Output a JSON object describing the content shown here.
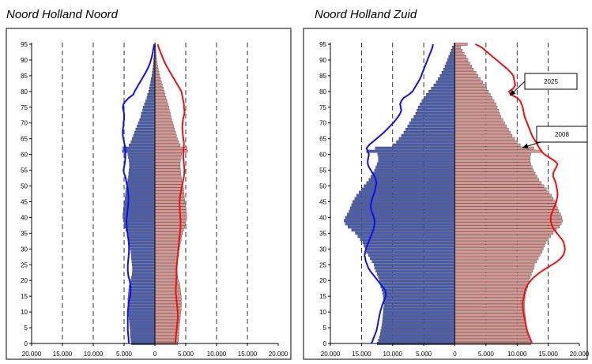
{
  "chart_data": [
    {
      "type": "bar",
      "title": "Noord Holland Noord",
      "orientation": "horizontal",
      "ages": [
        0,
        1,
        2,
        3,
        4,
        5,
        6,
        7,
        8,
        9,
        10,
        11,
        12,
        13,
        14,
        15,
        16,
        17,
        18,
        19,
        20,
        21,
        22,
        23,
        24,
        25,
        26,
        27,
        28,
        29,
        30,
        31,
        32,
        33,
        34,
        35,
        36,
        37,
        38,
        39,
        40,
        41,
        42,
        43,
        44,
        45,
        46,
        47,
        48,
        49,
        50,
        51,
        52,
        53,
        54,
        55,
        56,
        57,
        58,
        59,
        60,
        61,
        62,
        63,
        64,
        65,
        66,
        67,
        68,
        69,
        70,
        71,
        72,
        73,
        74,
        75,
        76,
        77,
        78,
        79,
        80,
        81,
        82,
        83,
        84,
        85,
        86,
        87,
        88,
        89,
        90,
        91,
        92,
        93,
        94,
        95
      ],
      "y_ticks": [
        0,
        5,
        10,
        15,
        20,
        25,
        30,
        35,
        40,
        45,
        50,
        55,
        60,
        65,
        70,
        75,
        80,
        85,
        90,
        95
      ],
      "x_ticks": [
        -20000,
        -15000,
        -10000,
        -5000,
        0,
        5000,
        10000,
        15000,
        20000
      ],
      "x_tick_labels": [
        "20.000",
        "15.000",
        "10.000",
        "5.000",
        "0",
        "5.000",
        "10.000",
        "15.000",
        "20.000"
      ],
      "xlim": [
        -20000,
        20000
      ],
      "ylim": [
        0,
        95
      ],
      "series": [
        {
          "values": [
            3800,
            3900,
            3950,
            4000,
            4000,
            4050,
            4100,
            4150,
            4200,
            4250,
            4300,
            4350,
            4400,
            4400,
            4400,
            4350,
            4300,
            4250,
            4200,
            4100,
            3900,
            3800,
            3700,
            3650,
            3650,
            3700,
            3750,
            3800,
            3850,
            3900,
            4000,
            4100,
            4200,
            4300,
            4400,
            4500,
            4700,
            4900,
            5000,
            5100,
            5200,
            5200,
            5100,
            5100,
            5000,
            4900,
            4850,
            4800,
            4750,
            4700,
            4600,
            4500,
            4400,
            4300,
            4250,
            4200,
            4150,
            4150,
            4200,
            4300,
            4400,
            5300,
            5200,
            4200,
            3900,
            3700,
            3500,
            3300,
            3100,
            2900,
            2700,
            2500,
            2300,
            2200,
            2000,
            1900,
            1700,
            1500,
            1300,
            1200,
            1000,
            900,
            800,
            700,
            600,
            500,
            420,
            360,
            300,
            250,
            200,
            160,
            120,
            90,
            60,
            40
          ]
        },
        {
          "values": [
            3700,
            3800,
            3850,
            3900,
            3900,
            3950,
            4000,
            4050,
            4100,
            4150,
            4200,
            4250,
            4300,
            4300,
            4300,
            4250,
            4200,
            4150,
            4100,
            4000,
            3800,
            3700,
            3650,
            3600,
            3600,
            3650,
            3700,
            3750,
            3800,
            3850,
            3950,
            4050,
            4150,
            4250,
            4350,
            4450,
            4650,
            4850,
            4950,
            5050,
            5150,
            5150,
            5050,
            5050,
            4950,
            4850,
            4800,
            4750,
            4700,
            4650,
            4550,
            4450,
            4350,
            4250,
            4200,
            4150,
            4100,
            4100,
            4150,
            4250,
            4350,
            5300,
            5200,
            4100,
            3850,
            3650,
            3500,
            3350,
            3200,
            3050,
            2900,
            2750,
            2600,
            2500,
            2350,
            2250,
            2100,
            1950,
            1800,
            1650,
            1500,
            1350,
            1200,
            1050,
            900,
            780,
            660,
            560,
            460,
            380,
            300,
            240,
            180,
            140,
            100,
            70
          ]
        },
        {
          "values": [
            4200,
            4250,
            4300,
            4350,
            4400,
            4400,
            4400,
            4400,
            4400,
            4400,
            4400,
            4350,
            4300,
            4250,
            4150,
            4000,
            3950,
            3950,
            3950,
            4000,
            4100,
            4250,
            4350,
            4400,
            4400,
            4400,
            4350,
            4300,
            4250,
            4200,
            4200,
            4200,
            4250,
            4300,
            4400,
            4450,
            4500,
            4550,
            4600,
            4600,
            4550,
            4500,
            4450,
            4400,
            4350,
            4300,
            4300,
            4300,
            4350,
            4400,
            4500,
            4600,
            4700,
            4800,
            5000,
            5100,
            5000,
            4900,
            4850,
            4800,
            4800,
            4800,
            4800,
            4900,
            5000,
            5100,
            5200,
            5200,
            5200,
            5100,
            5100,
            5000,
            5000,
            5000,
            5100,
            5200,
            5100,
            4700,
            4200,
            3500,
            3300,
            3000,
            2700,
            2400,
            2100,
            1800,
            1500,
            1250,
            1000,
            800,
            650,
            500,
            400,
            300,
            200,
            120
          ]
        },
        {
          "values": [
            3300,
            3350,
            3400,
            3450,
            3500,
            3550,
            3600,
            3650,
            3700,
            3700,
            3700,
            3650,
            3600,
            3550,
            3500,
            3450,
            3400,
            3400,
            3400,
            3450,
            3450,
            3500,
            3500,
            3500,
            3500,
            3550,
            3600,
            3650,
            3700,
            3750,
            3800,
            3850,
            3900,
            3950,
            4000,
            4050,
            4100,
            4150,
            4150,
            4150,
            4100,
            4100,
            4050,
            4050,
            4000,
            4000,
            4050,
            4100,
            4200,
            4300,
            4400,
            4500,
            4600,
            4700,
            4750,
            4800,
            4750,
            4700,
            4650,
            4600,
            4600,
            4600,
            4650,
            4700,
            4700,
            4600,
            4550,
            4500,
            4450,
            4450,
            4500,
            4550,
            4650,
            4800,
            4800,
            4700,
            4700,
            4600,
            4500,
            4400,
            4300,
            4000,
            3700,
            3400,
            3100,
            2800,
            2500,
            2200,
            1900,
            1650,
            1400,
            1200,
            1000,
            800,
            600,
            450
          ]
        }
      ]
    },
    {
      "type": "bar",
      "title": "Noord Holland Zuid",
      "orientation": "horizontal",
      "ages": [
        0,
        1,
        2,
        3,
        4,
        5,
        6,
        7,
        8,
        9,
        10,
        11,
        12,
        13,
        14,
        15,
        16,
        17,
        18,
        19,
        20,
        21,
        22,
        23,
        24,
        25,
        26,
        27,
        28,
        29,
        30,
        31,
        32,
        33,
        34,
        35,
        36,
        37,
        38,
        39,
        40,
        41,
        42,
        43,
        44,
        45,
        46,
        47,
        48,
        49,
        50,
        51,
        52,
        53,
        54,
        55,
        56,
        57,
        58,
        59,
        60,
        61,
        62,
        63,
        64,
        65,
        66,
        67,
        68,
        69,
        70,
        71,
        72,
        73,
        74,
        75,
        76,
        77,
        78,
        79,
        80,
        81,
        82,
        83,
        84,
        85,
        86,
        87,
        88,
        89,
        90,
        91,
        92,
        93,
        94,
        95
      ],
      "y_ticks": [
        0,
        5,
        10,
        15,
        20,
        25,
        30,
        35,
        40,
        45,
        50,
        55,
        60,
        65,
        70,
        75,
        80,
        85,
        90,
        95
      ],
      "x_ticks": [
        -20000,
        -15000,
        -10000,
        -5000,
        0,
        5000,
        10000,
        15000,
        20000
      ],
      "x_tick_labels": [
        "20.000",
        "15.000",
        "10.000",
        "5.000",
        "0",
        "5.000",
        "10.000",
        "15.000",
        "20.000"
      ],
      "xlim": [
        -20000,
        20000
      ],
      "ylim": [
        0,
        95
      ],
      "annotations": [
        "2025",
        "2008"
      ],
      "series": [
        {
          "values": [
            12500,
            12300,
            12100,
            12000,
            11900,
            11800,
            11700,
            11650,
            11600,
            11550,
            11500,
            11450,
            11400,
            11400,
            11450,
            11500,
            11600,
            11750,
            11900,
            12000,
            12100,
            12300,
            12500,
            12700,
            12900,
            13000,
            13300,
            13600,
            13900,
            14200,
            14400,
            14600,
            14800,
            15200,
            15600,
            16000,
            16600,
            17200,
            17600,
            17800,
            17600,
            17300,
            17000,
            16800,
            16600,
            16400,
            16100,
            15800,
            15400,
            15000,
            14600,
            14200,
            13800,
            13500,
            13200,
            12900,
            12700,
            12500,
            12300,
            12300,
            12400,
            14200,
            12800,
            10000,
            9400,
            9000,
            8600,
            8200,
            7900,
            7600,
            7300,
            7000,
            6600,
            6300,
            6100,
            5900,
            5600,
            5300,
            5000,
            4600,
            4200,
            3800,
            3400,
            3000,
            2700,
            2400,
            2100,
            1800,
            1600,
            1400,
            1200,
            1000,
            800,
            600,
            400,
            150
          ]
        },
        {
          "values": [
            12200,
            12000,
            11850,
            11700,
            11600,
            11500,
            11450,
            11400,
            11350,
            11300,
            11250,
            11200,
            11200,
            11200,
            11250,
            11300,
            11400,
            11550,
            11700,
            11800,
            11900,
            12100,
            12300,
            12500,
            12700,
            12800,
            13100,
            13400,
            13700,
            14000,
            14200,
            14400,
            14600,
            15000,
            15400,
            15800,
            16300,
            16800,
            17100,
            17300,
            17200,
            17000,
            16700,
            16500,
            16300,
            16100,
            15800,
            15500,
            15100,
            14700,
            14300,
            13900,
            13500,
            13200,
            12900,
            12600,
            12400,
            12200,
            12100,
            12100,
            12200,
            14000,
            12700,
            10500,
            10000,
            9600,
            9200,
            8900,
            8600,
            8300,
            8000,
            7700,
            7400,
            7200,
            7000,
            6800,
            6600,
            6300,
            6000,
            5700,
            5400,
            5100,
            4800,
            4500,
            4100,
            3700,
            3400,
            3000,
            2700,
            2400,
            2100,
            1800,
            1500,
            1200,
            900,
            2000
          ]
        },
        {
          "values": [
            13400,
            13200,
            13000,
            12800,
            12600,
            12500,
            12400,
            12300,
            12200,
            12100,
            12000,
            11850,
            11700,
            11500,
            11300,
            11100,
            11100,
            11200,
            11600,
            12000,
            12400,
            12800,
            13200,
            13600,
            13900,
            14100,
            14300,
            14400,
            14500,
            14400,
            14300,
            14100,
            13900,
            13700,
            13500,
            13300,
            13100,
            13000,
            12900,
            12900,
            13000,
            13200,
            13400,
            13500,
            13500,
            13400,
            13300,
            13100,
            12900,
            12800,
            12700,
            12600,
            12700,
            12900,
            13200,
            13500,
            13800,
            14000,
            14000,
            13900,
            13800,
            14000,
            14200,
            13800,
            13200,
            12600,
            12000,
            11400,
            10900,
            10400,
            9900,
            9500,
            9100,
            8800,
            8600,
            8700,
            8800,
            8600,
            8200,
            7400,
            6800,
            6500,
            6200,
            5900,
            5600,
            5400,
            5200,
            5000,
            4800,
            4600,
            4400,
            4200,
            4000,
            3800,
            3600,
            3500
          ]
        },
        {
          "values": [
            12400,
            12200,
            12000,
            11800,
            11600,
            11500,
            11400,
            11300,
            11200,
            11100,
            11000,
            10950,
            10900,
            10900,
            11000,
            11100,
            11200,
            11300,
            11500,
            11800,
            12200,
            12700,
            13300,
            14000,
            14800,
            15600,
            16400,
            17000,
            17400,
            17600,
            17700,
            17600,
            17500,
            17200,
            16800,
            16400,
            16000,
            15700,
            15500,
            15400,
            15400,
            15500,
            15700,
            15900,
            16100,
            16300,
            16400,
            16500,
            16500,
            16400,
            16300,
            16200,
            16000,
            15800,
            15800,
            16000,
            16300,
            16500,
            16000,
            15200,
            14400,
            13900,
            13600,
            13300,
            13000,
            12700,
            12400,
            12200,
            12000,
            11800,
            11600,
            11400,
            11200,
            11100,
            11000,
            10900,
            10700,
            10500,
            10000,
            9000,
            8700,
            9400,
            9700,
            9600,
            9500,
            9400,
            9000,
            8500,
            7900,
            7300,
            6700,
            6100,
            5500,
            4900,
            4300,
            3300
          ]
        }
      ]
    }
  ]
}
